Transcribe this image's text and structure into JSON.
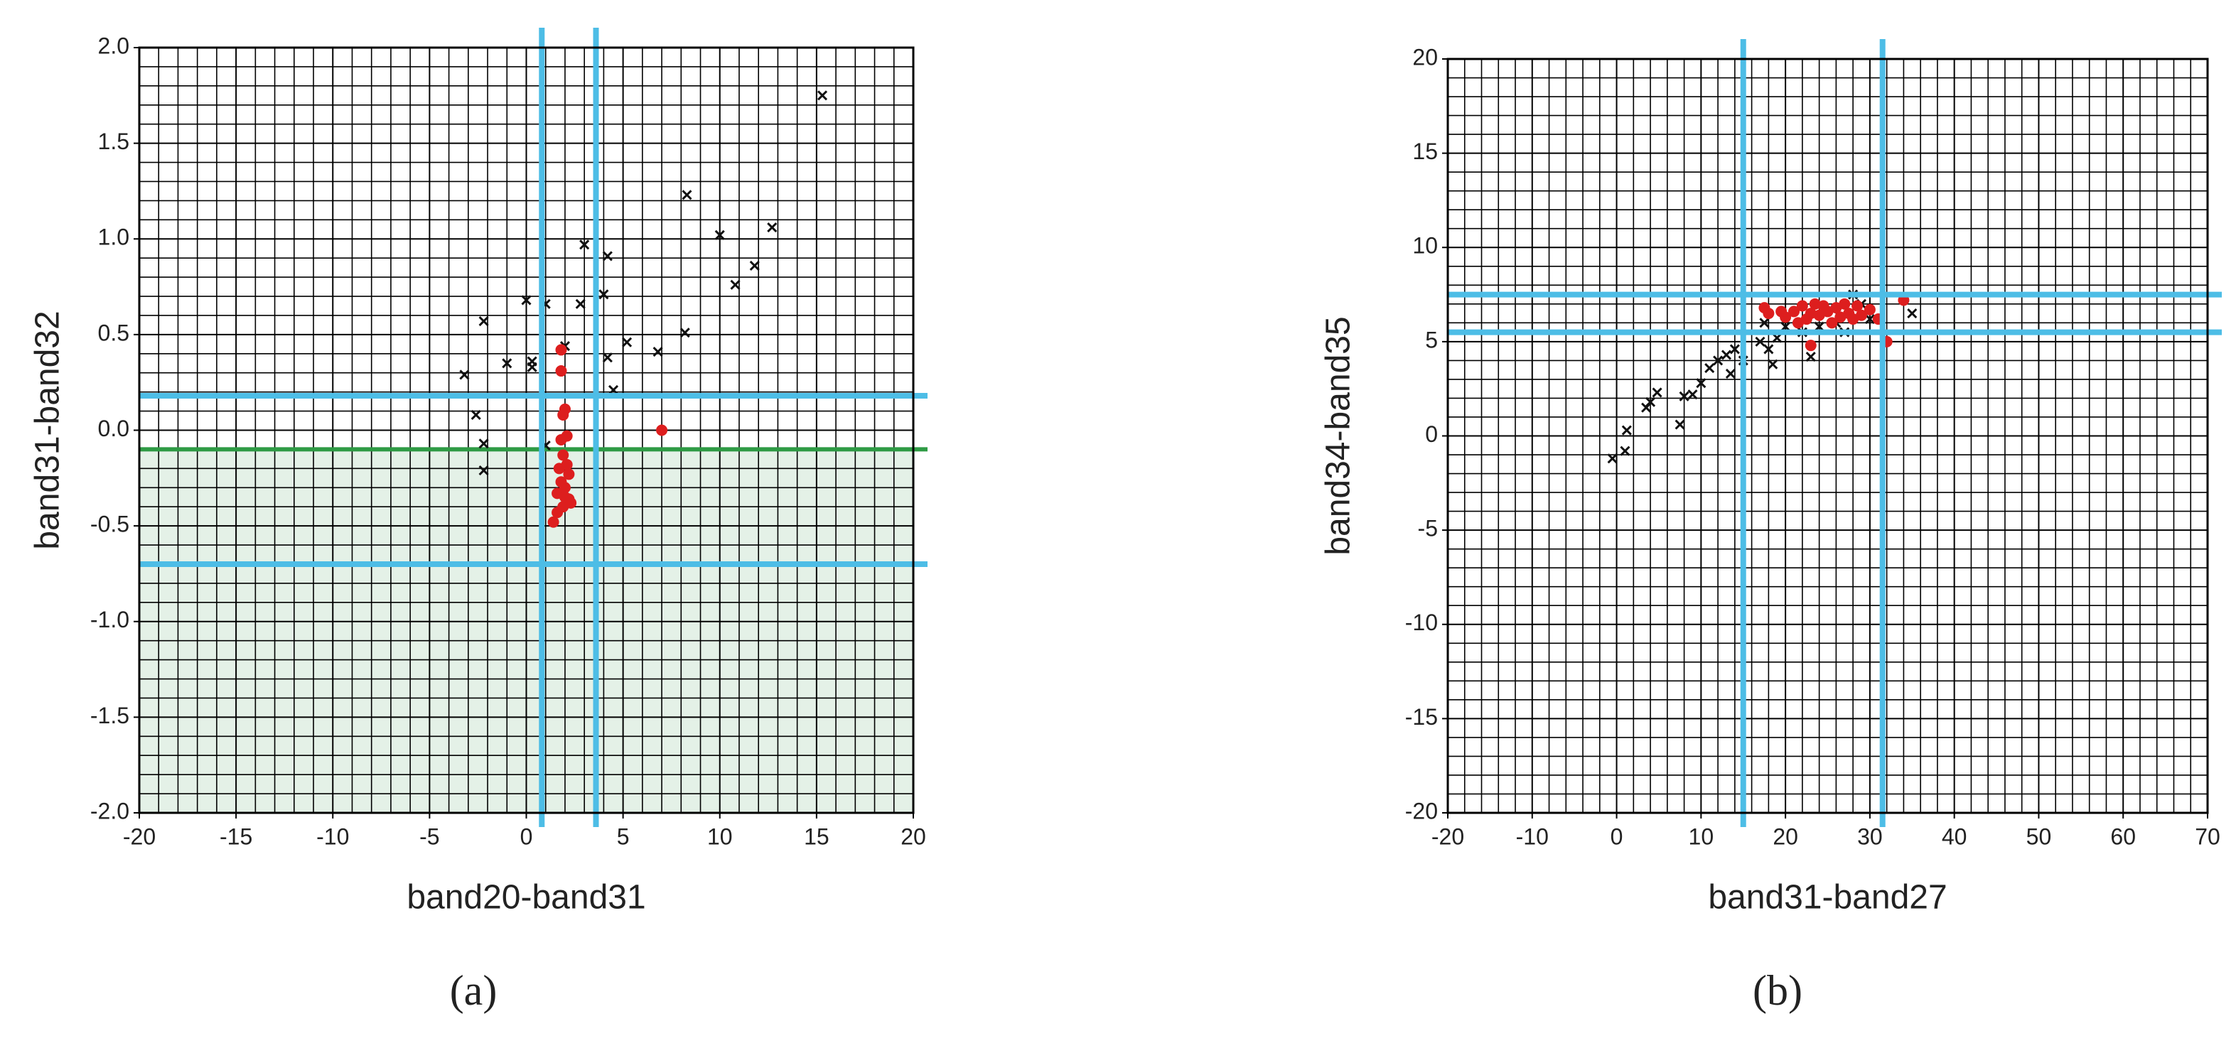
{
  "chart_data": [
    {
      "type": "scatter",
      "panel_label": "(a)",
      "xlabel": "band20-band31",
      "ylabel": "band31-band32",
      "xlim": [
        -20,
        20
      ],
      "xticks": [
        -20,
        -15,
        -10,
        -5,
        0,
        5,
        10,
        15,
        20
      ],
      "ylim": [
        -2.0,
        2.0
      ],
      "yticks": [
        {
          "value": -2.0,
          "label": "-2.0"
        },
        {
          "value": -1.5,
          "label": "-1.5"
        },
        {
          "value": -1.0,
          "label": "-1.0"
        },
        {
          "value": -0.5,
          "label": "-0.5"
        },
        {
          "value": 0.0,
          "label": "0.0"
        },
        {
          "value": 0.5,
          "label": "0.5"
        },
        {
          "value": 1.0,
          "label": "1.0"
        },
        {
          "value": 1.5,
          "label": "1.5"
        },
        {
          "value": 2.0,
          "label": "2.0"
        }
      ],
      "grid": true,
      "shaded_below": {
        "value": -0.1,
        "line_color": "#2e9a44",
        "fill_color": "#e4f1e7"
      },
      "vlines": {
        "values": [
          0.8,
          3.6
        ],
        "color": "#4dbde6"
      },
      "hlines": {
        "values": [
          0.18,
          -0.7
        ],
        "color": "#4dbde6"
      },
      "series": [
        {
          "marker": "x",
          "color": "#111111",
          "x": [
            15.3,
            8.3,
            12.7,
            10,
            11.8,
            10.8,
            3,
            4.2,
            4,
            2.8,
            0,
            1,
            -2.2,
            5.2,
            8.2,
            6.8,
            4.2,
            2,
            0.3,
            0.3,
            -1,
            -3.2,
            4.5,
            -2.6,
            -2.2,
            -2.2,
            1
          ],
          "values": [
            1.75,
            1.23,
            1.06,
            1.02,
            0.86,
            0.76,
            0.97,
            0.91,
            0.71,
            0.66,
            0.68,
            0.66,
            0.57,
            0.46,
            0.51,
            0.41,
            0.38,
            0.44,
            0.36,
            0.33,
            0.35,
            0.29,
            0.21,
            0.08,
            -0.07,
            -0.21,
            -0.08
          ]
        },
        {
          "marker": "circle",
          "color": "#dd1e1e",
          "x": [
            7,
            1.8,
            1.8,
            2,
            1.9,
            2.1,
            1.8,
            1.9,
            2.1,
            1.7,
            2.2,
            1.8,
            2,
            1.6,
            2.2,
            1.9,
            1.6,
            2.3,
            1.4,
            2
          ],
          "values": [
            0.0,
            0.42,
            0.31,
            0.11,
            0.08,
            -0.03,
            -0.05,
            -0.13,
            -0.18,
            -0.2,
            -0.23,
            -0.27,
            -0.3,
            -0.33,
            -0.36,
            -0.4,
            -0.43,
            -0.38,
            -0.48,
            -0.35
          ]
        }
      ]
    },
    {
      "type": "scatter",
      "panel_label": "(b)",
      "xlabel": "band31-band27",
      "ylabel": "band34-band35",
      "xlim": [
        -20,
        70
      ],
      "xticks": [
        -20,
        -10,
        0,
        10,
        20,
        30,
        40,
        50,
        60,
        70
      ],
      "ylim": [
        -20,
        20
      ],
      "yticks": [
        -20,
        -15,
        -10,
        -5,
        0,
        5,
        10,
        15,
        20
      ],
      "grid": true,
      "vlines": {
        "values": [
          15,
          31.5
        ],
        "color": "#4dbde6"
      },
      "hlines": {
        "values": [
          7.5,
          5.5
        ],
        "color": "#4dbde6"
      },
      "series": [
        {
          "marker": "x",
          "color": "#111111",
          "x": [
            -0.5,
            1,
            1.2,
            3.5,
            4,
            4.8,
            7.5,
            8,
            9,
            10,
            11,
            12,
            13,
            13.5,
            14,
            15,
            17,
            18,
            18.5,
            19,
            20,
            17.5,
            22,
            23,
            24,
            26,
            28,
            30,
            35,
            29,
            27
          ],
          "values": [
            -1.2,
            -0.8,
            0.3,
            1.5,
            1.8,
            2.3,
            0.6,
            2.1,
            2.2,
            2.8,
            3.6,
            4,
            4.3,
            3.3,
            4.6,
            4,
            5,
            4.6,
            3.8,
            5.2,
            5.8,
            6,
            5.5,
            4.2,
            5.8,
            6,
            7.5,
            6.2,
            6.5,
            7,
            5.5
          ]
        },
        {
          "marker": "circle",
          "color": "#dd1e1e",
          "x": [
            17.5,
            18,
            20,
            21,
            22,
            22.5,
            23,
            23.5,
            24,
            24.5,
            25,
            25.5,
            26,
            26.5,
            27,
            27.5,
            28,
            28.5,
            29,
            30,
            31,
            32,
            34,
            23,
            21.5,
            19.5
          ],
          "values": [
            6.8,
            6.5,
            6.3,
            6.6,
            6.9,
            6.2,
            6.5,
            7,
            6.4,
            6.9,
            6.6,
            6,
            6.8,
            6.3,
            7,
            6.5,
            6.2,
            6.9,
            6.4,
            6.7,
            6.2,
            5,
            7.2,
            4.8,
            6,
            6.6
          ]
        }
      ]
    }
  ]
}
